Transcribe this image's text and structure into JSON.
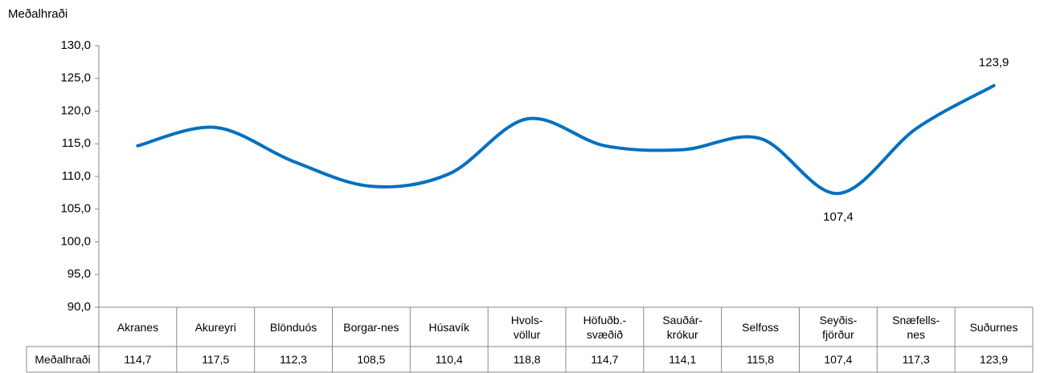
{
  "chart_data": {
    "type": "line",
    "y_label": "Meðalhraði",
    "categories": [
      "Akranes",
      "Akureyri",
      "Blönduós",
      "Borgar-nes",
      "Húsavík",
      "Hvols-\nvöllur",
      "Höfuðb.-\nsvæðið",
      "Sauðár-\nkrókur",
      "Selfoss",
      "Seyðis-\nfjörður",
      "Snæfells-\nnes",
      "Suðurnes"
    ],
    "series": [
      {
        "name": "Meðalhraði",
        "color": "#0070c0",
        "values": [
          114.7,
          117.5,
          112.3,
          108.5,
          110.4,
          118.8,
          114.7,
          114.1,
          115.8,
          107.4,
          117.3,
          123.9
        ],
        "value_labels": [
          "114,7",
          "117,5",
          "112,3",
          "108,5",
          "110,4",
          "118,8",
          "114,7",
          "114,1",
          "115,8",
          "107,4",
          "117,3",
          "123,9"
        ]
      }
    ],
    "ylim": [
      90,
      130
    ],
    "yticks": [
      {
        "value": 90,
        "label": "90,0"
      },
      {
        "value": 95,
        "label": "95,0"
      },
      {
        "value": 100,
        "label": "100,0"
      },
      {
        "value": 105,
        "label": "105,0"
      },
      {
        "value": 110,
        "label": "110,0"
      },
      {
        "value": 115,
        "label": "115,0"
      },
      {
        "value": 120,
        "label": "120,0"
      },
      {
        "value": 125,
        "label": "125,0"
      },
      {
        "value": 130,
        "label": "130,0"
      }
    ]
  }
}
